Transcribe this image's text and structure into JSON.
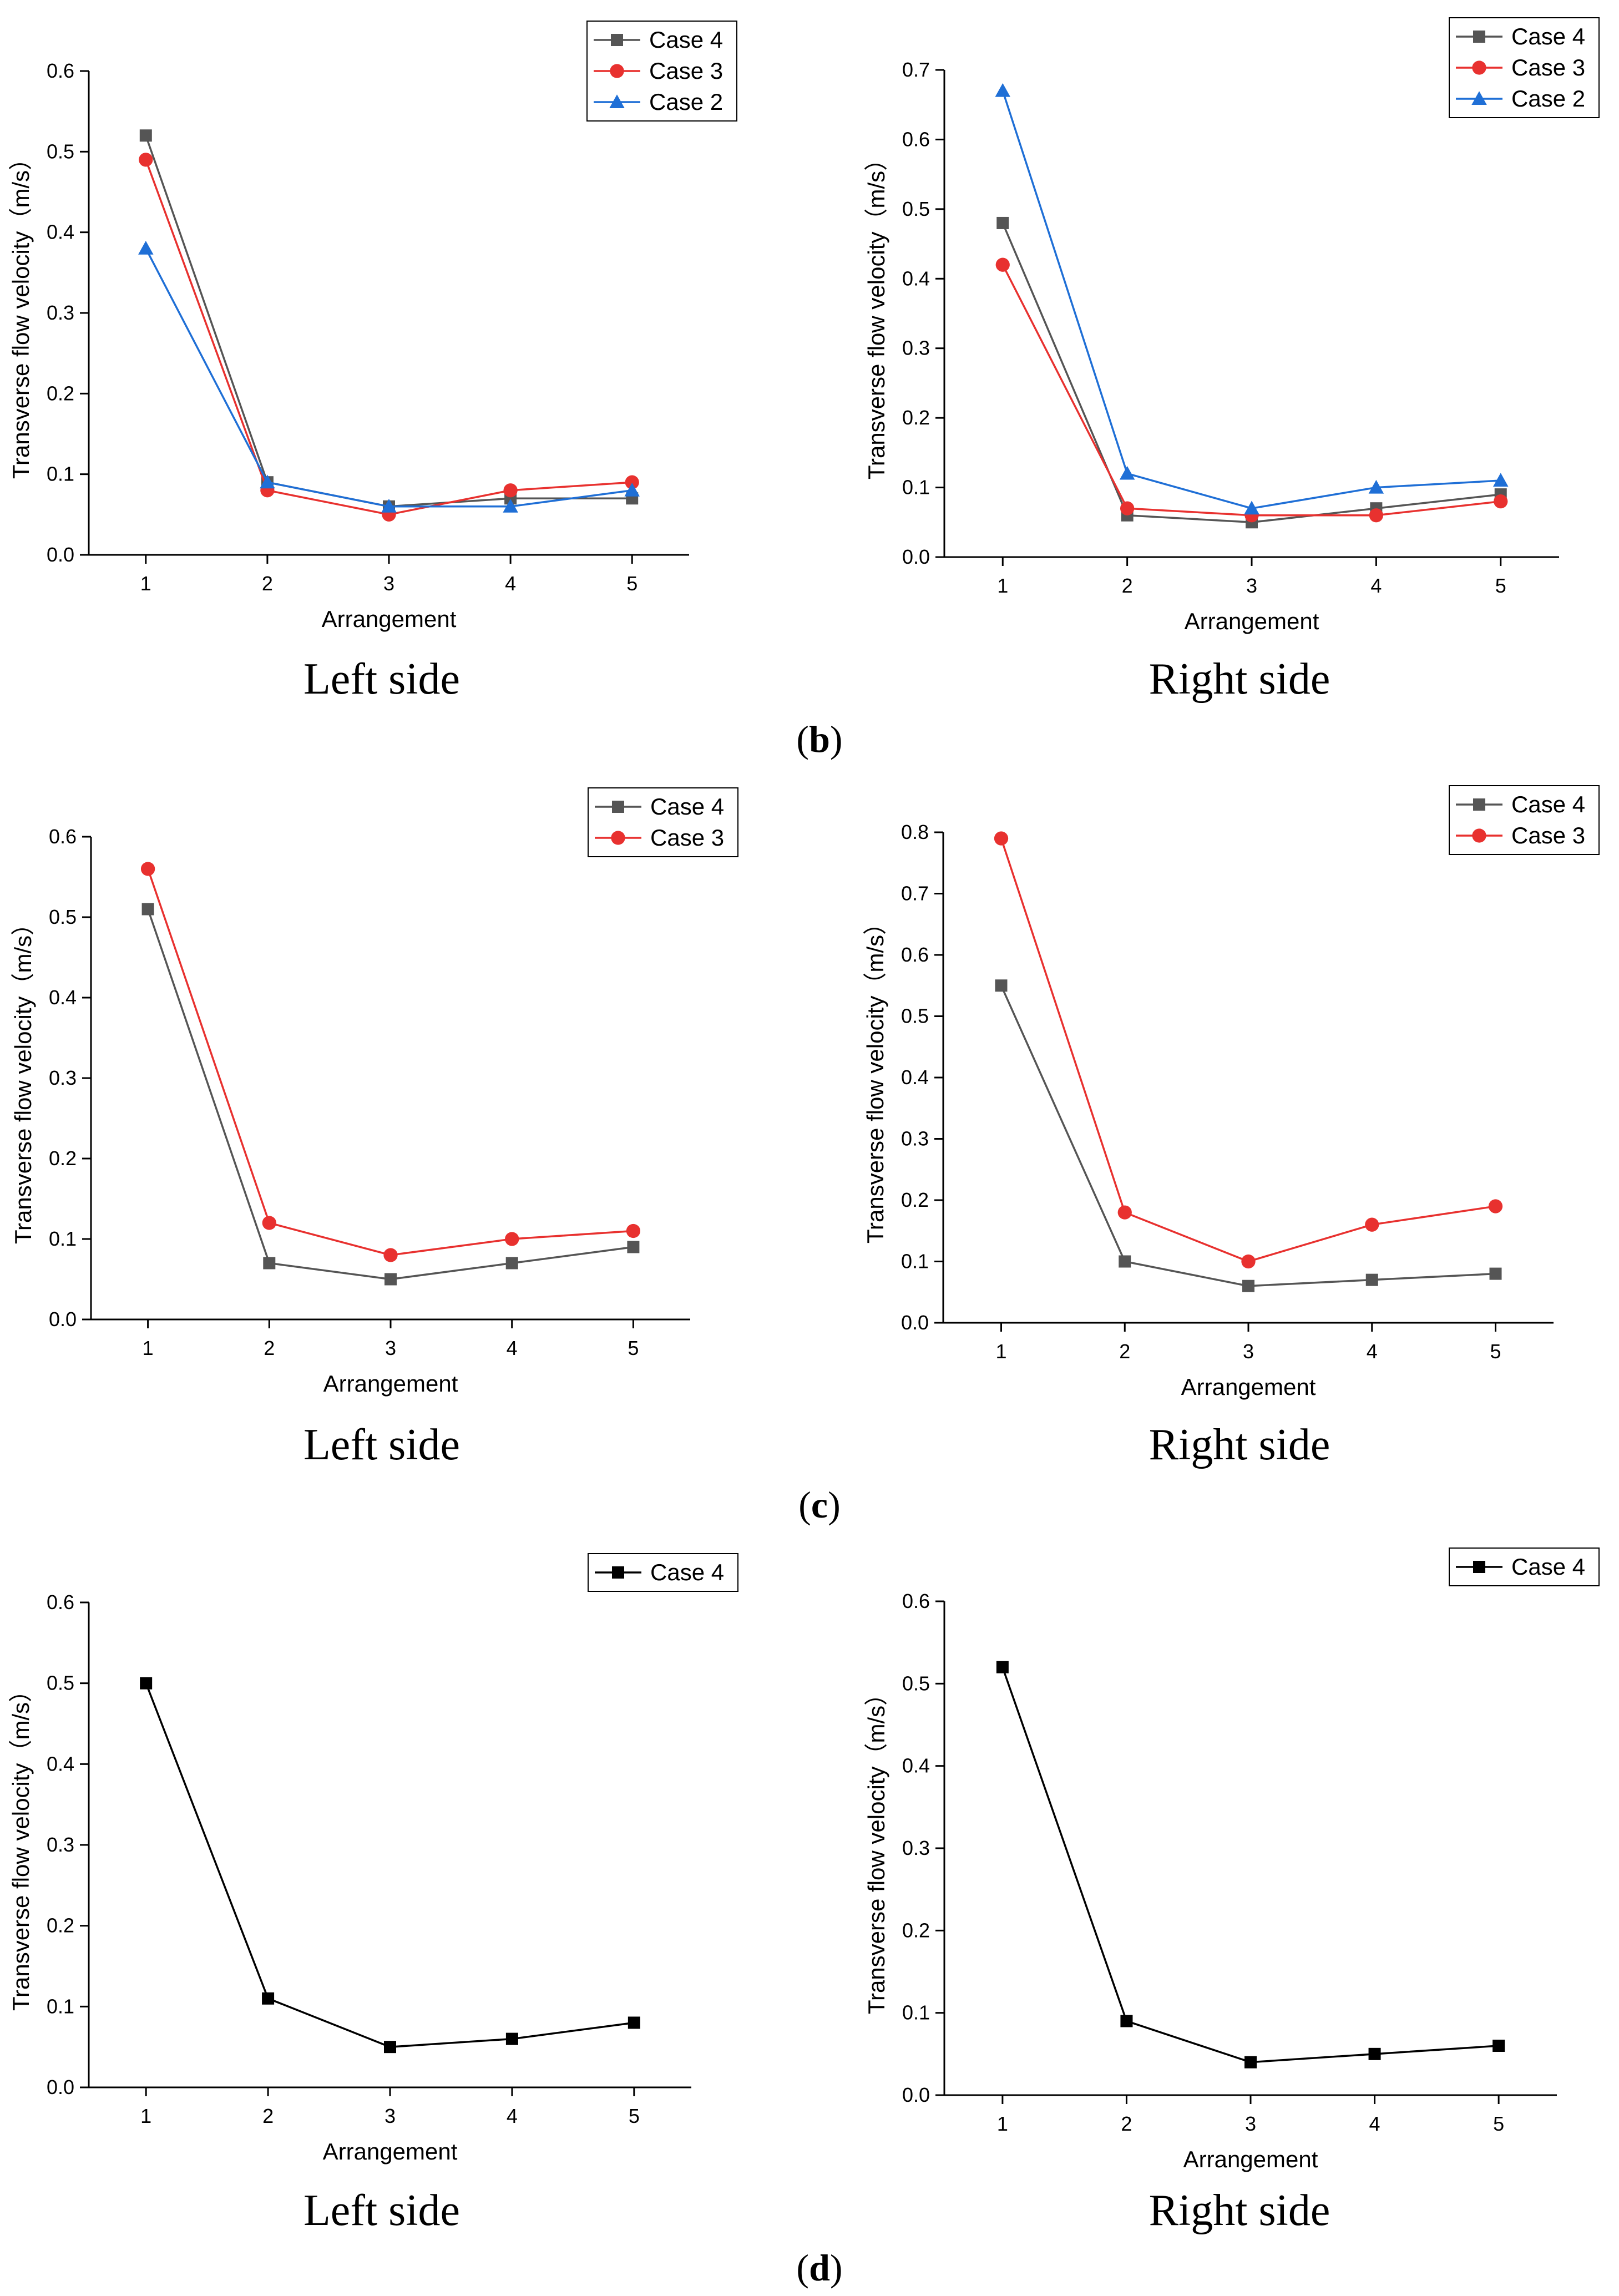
{
  "figure": {
    "panel_captions": [
      {
        "open": "(",
        "letter": "b",
        "close": ")"
      },
      {
        "open": "(",
        "letter": "c",
        "close": ")"
      },
      {
        "open": "(",
        "letter": "d",
        "close": ")"
      }
    ]
  },
  "colors": {
    "case4_gray": "#555555",
    "case3_red": "#e8312f",
    "case2_blue": "#1f6fd6",
    "case4_black": "#000000",
    "axis": "#000000"
  },
  "chart_data": [
    {
      "id": "b-left",
      "type": "line",
      "caption": "Left side",
      "xlabel": "Arrangement",
      "ylabel": "Transverse flow velocity（m/s）",
      "categories": [
        1,
        2,
        3,
        4,
        5
      ],
      "ylim": [
        0,
        0.6
      ],
      "yticks": [
        0.0,
        0.1,
        0.2,
        0.3,
        0.4,
        0.5,
        0.6
      ],
      "ytick_labels": [
        "0.0",
        "0.1",
        "0.2",
        "0.3",
        "0.4",
        "0.5",
        "0.6"
      ],
      "legend_position": "top-right",
      "series": [
        {
          "name": "Case 4",
          "color": "#555555",
          "marker": "square",
          "values": [
            0.52,
            0.09,
            0.06,
            0.07,
            0.07
          ]
        },
        {
          "name": "Case 3",
          "color": "#e8312f",
          "marker": "circle",
          "values": [
            0.49,
            0.08,
            0.05,
            0.08,
            0.09
          ]
        },
        {
          "name": "Case 2",
          "color": "#1f6fd6",
          "marker": "triangle",
          "values": [
            0.38,
            0.09,
            0.06,
            0.06,
            0.08
          ]
        }
      ]
    },
    {
      "id": "b-right",
      "type": "line",
      "caption": "Right side",
      "xlabel": "Arrangement",
      "ylabel": "Transverse flow velocity（m/s）",
      "categories": [
        1,
        2,
        3,
        4,
        5
      ],
      "ylim": [
        0,
        0.7
      ],
      "yticks": [
        0.0,
        0.1,
        0.2,
        0.3,
        0.4,
        0.5,
        0.6,
        0.7
      ],
      "ytick_labels": [
        "0.0",
        "0.1",
        "0.2",
        "0.3",
        "0.4",
        "0.5",
        "0.6",
        "0.7"
      ],
      "legend_position": "top-right",
      "series": [
        {
          "name": "Case 4",
          "color": "#555555",
          "marker": "square",
          "values": [
            0.48,
            0.06,
            0.05,
            0.07,
            0.09
          ]
        },
        {
          "name": "Case 3",
          "color": "#e8312f",
          "marker": "circle",
          "values": [
            0.42,
            0.07,
            0.06,
            0.06,
            0.08
          ]
        },
        {
          "name": "Case 2",
          "color": "#1f6fd6",
          "marker": "triangle",
          "values": [
            0.67,
            0.12,
            0.07,
            0.1,
            0.11
          ]
        }
      ]
    },
    {
      "id": "c-left",
      "type": "line",
      "caption": "Left side",
      "xlabel": "Arrangement",
      "ylabel": "Transverse flow velocity（m/s）",
      "categories": [
        1,
        2,
        3,
        4,
        5
      ],
      "ylim": [
        0,
        0.6
      ],
      "yticks": [
        0.0,
        0.1,
        0.2,
        0.3,
        0.4,
        0.5,
        0.6
      ],
      "ytick_labels": [
        "0.0",
        "0.1",
        "0.2",
        "0.3",
        "0.4",
        "0.5",
        "0.6"
      ],
      "legend_position": "top-right",
      "series": [
        {
          "name": "Case 4",
          "color": "#555555",
          "marker": "square",
          "values": [
            0.51,
            0.07,
            0.05,
            0.07,
            0.09
          ]
        },
        {
          "name": "Case 3",
          "color": "#e8312f",
          "marker": "circle",
          "values": [
            0.56,
            0.12,
            0.08,
            0.1,
            0.11
          ]
        }
      ]
    },
    {
      "id": "c-right",
      "type": "line",
      "caption": "Right side",
      "xlabel": "Arrangement",
      "ylabel": "Transverse flow velocity（m/s）",
      "categories": [
        1,
        2,
        3,
        4,
        5
      ],
      "ylim": [
        0,
        0.8
      ],
      "yticks": [
        0.0,
        0.1,
        0.2,
        0.3,
        0.4,
        0.5,
        0.6,
        0.7,
        0.8
      ],
      "ytick_labels": [
        "0.0",
        "0.1",
        "0.2",
        "0.3",
        "0.4",
        "0.5",
        "0.6",
        "0.7",
        "0.8"
      ],
      "legend_position": "top-right",
      "series": [
        {
          "name": "Case 4",
          "color": "#555555",
          "marker": "square",
          "values": [
            0.55,
            0.1,
            0.06,
            0.07,
            0.08
          ]
        },
        {
          "name": "Case 3",
          "color": "#e8312f",
          "marker": "circle",
          "values": [
            0.79,
            0.18,
            0.1,
            0.16,
            0.19
          ]
        }
      ]
    },
    {
      "id": "d-left",
      "type": "line",
      "caption": "Left side",
      "xlabel": "Arrangement",
      "ylabel": "Transverse flow velocity（m/s）",
      "categories": [
        1,
        2,
        3,
        4,
        5
      ],
      "ylim": [
        0,
        0.6
      ],
      "yticks": [
        0.0,
        0.1,
        0.2,
        0.3,
        0.4,
        0.5,
        0.6
      ],
      "ytick_labels": [
        "0.0",
        "0.1",
        "0.2",
        "0.3",
        "0.4",
        "0.5",
        "0.6"
      ],
      "legend_position": "top-right",
      "series": [
        {
          "name": "Case 4",
          "color": "#000000",
          "marker": "square",
          "values": [
            0.5,
            0.11,
            0.05,
            0.06,
            0.08
          ]
        }
      ]
    },
    {
      "id": "d-right",
      "type": "line",
      "caption": "Right side",
      "xlabel": "Arrangement",
      "ylabel": "Transverse flow velocity（m/s）",
      "categories": [
        1,
        2,
        3,
        4,
        5
      ],
      "ylim": [
        0,
        0.6
      ],
      "yticks": [
        0.0,
        0.1,
        0.2,
        0.3,
        0.4,
        0.5,
        0.6
      ],
      "ytick_labels": [
        "0.0",
        "0.1",
        "0.2",
        "0.3",
        "0.4",
        "0.5",
        "0.6"
      ],
      "legend_position": "top-right",
      "series": [
        {
          "name": "Case 4",
          "color": "#000000",
          "marker": "square",
          "values": [
            0.52,
            0.09,
            0.04,
            0.05,
            0.06
          ]
        }
      ]
    }
  ]
}
